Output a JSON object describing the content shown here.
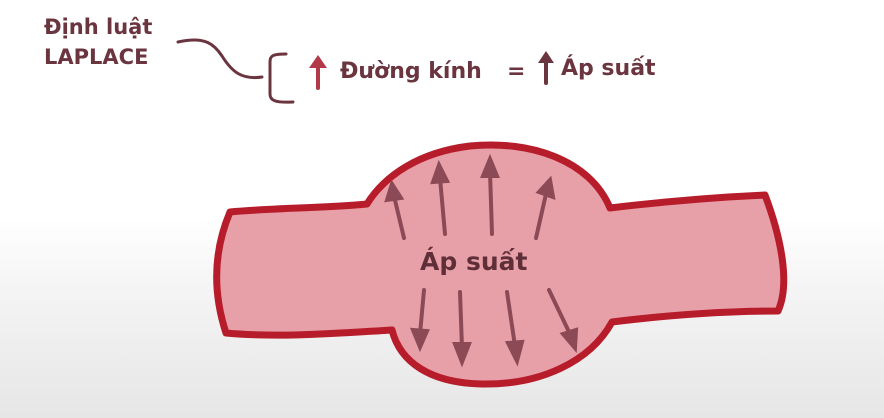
{
  "law": {
    "title_line1": "Định luật",
    "title_line2": "LAPLACE"
  },
  "formula": {
    "term1": "Đường kính",
    "operator": "=",
    "term2": "Áp suất"
  },
  "vessel": {
    "center_label": "Áp suất"
  },
  "colors": {
    "dark_text": "#6b3540",
    "accent_arrow": "#b23a48",
    "vessel_outline": "#b71c2b",
    "vessel_fill": "#e8a0a8",
    "inner_arrow": "#8c4a56"
  },
  "icons": [
    "up-arrow-icon",
    "bracket-icon",
    "connector-curve-icon"
  ]
}
